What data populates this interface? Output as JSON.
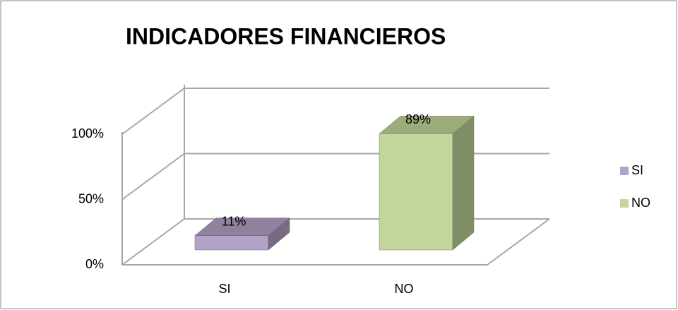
{
  "chart_data": {
    "type": "bar3d",
    "title": "INDICADORES FINANCIEROS",
    "categories": [
      "SI",
      "NO"
    ],
    "values": [
      11,
      89
    ],
    "value_labels": [
      "11%",
      "89%"
    ],
    "colors": [
      "#b3a2c7",
      "#c3d69b"
    ],
    "ylim": [
      0,
      100
    ],
    "yticks": [
      {
        "value": 0,
        "label": "0%"
      },
      {
        "value": 50,
        "label": "50%"
      },
      {
        "value": 100,
        "label": "100%"
      }
    ],
    "grid": true,
    "legend": "right"
  }
}
